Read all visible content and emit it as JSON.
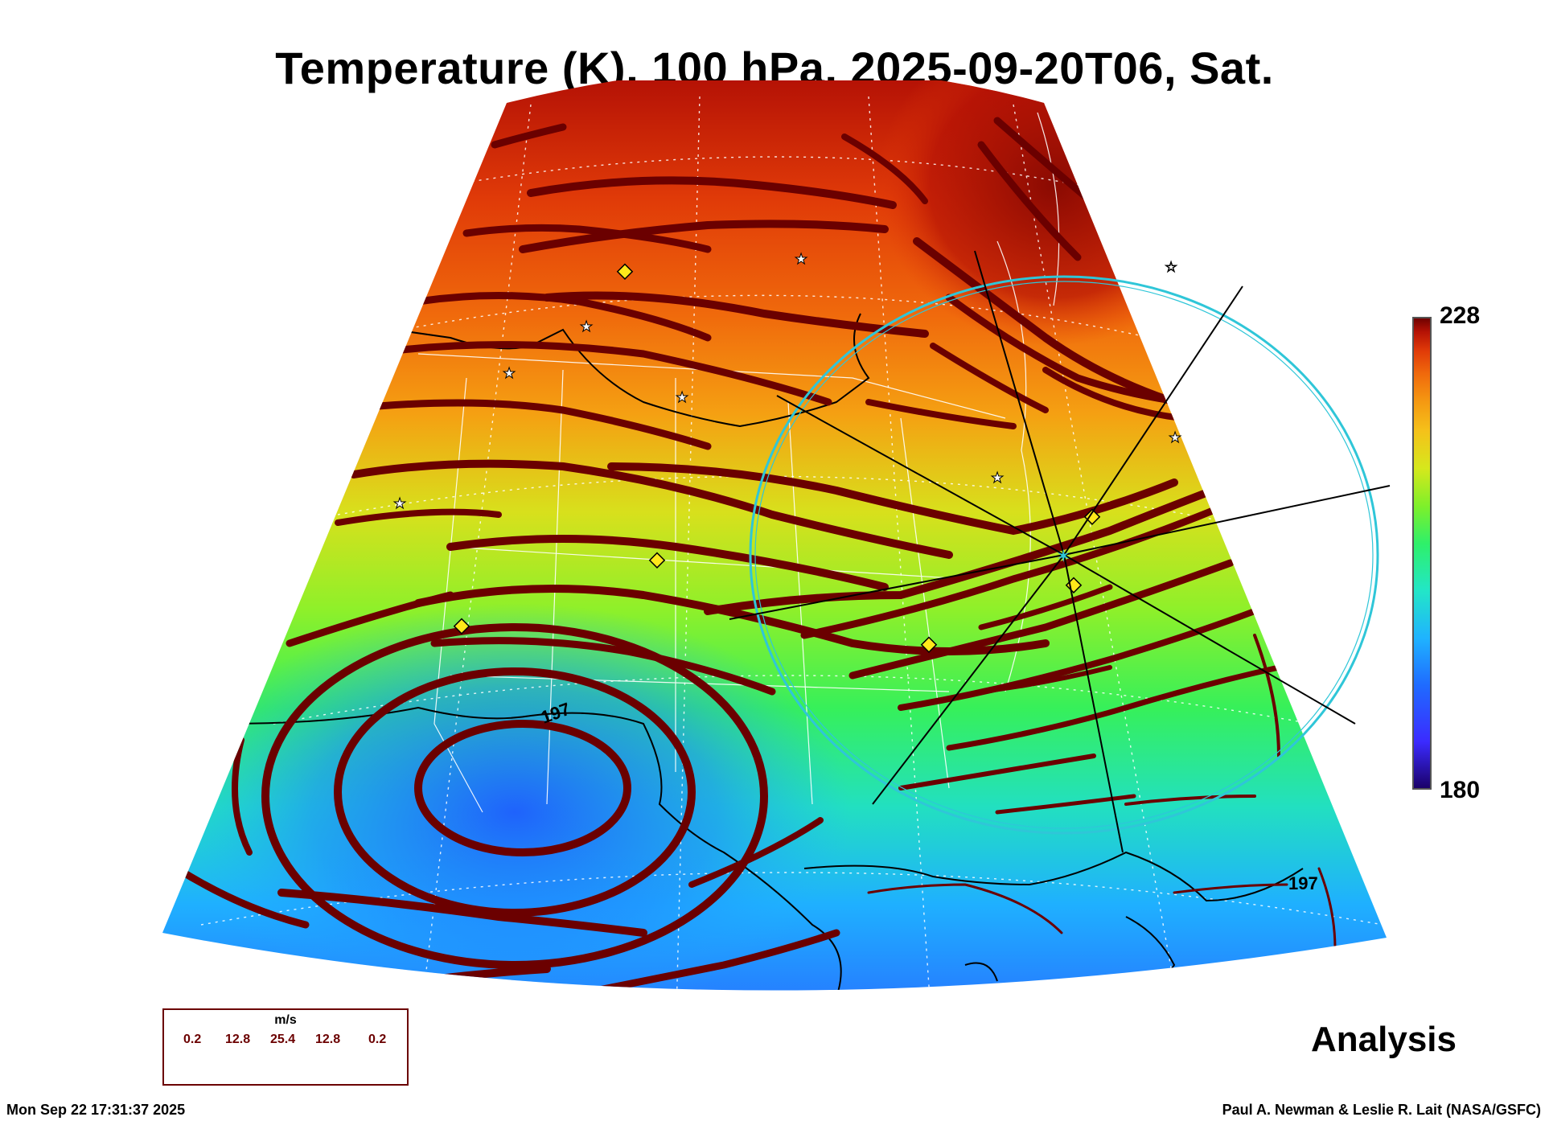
{
  "title": "Temperature (K), 100 hPa, 2025-09-20T06, Sat.",
  "colorbar": {
    "max": "228",
    "min": "180",
    "colors": [
      "#1a0066",
      "#3b2bff",
      "#1f6bff",
      "#1fb3ff",
      "#22e6c8",
      "#2ef06a",
      "#7ef02a",
      "#d6e81c",
      "#f5c11a",
      "#f59a12",
      "#f06a0c",
      "#e03a08",
      "#b51205",
      "#6b0000"
    ]
  },
  "contour_labels": [
    "197",
    "197"
  ],
  "legend": {
    "unit": "m/s",
    "speeds": [
      "0.2",
      "12.8",
      "25.4",
      "12.8",
      "0.2"
    ]
  },
  "stamp": "Analysis",
  "footer": {
    "timestamp": "Mon Sep 22 17:31:37 2025",
    "credit": "Paul A. Newman & Leslie R. Lait (NASA/GSFC)"
  },
  "colors": {
    "stream": "#6b0000",
    "circle": "#2fc6d8"
  }
}
